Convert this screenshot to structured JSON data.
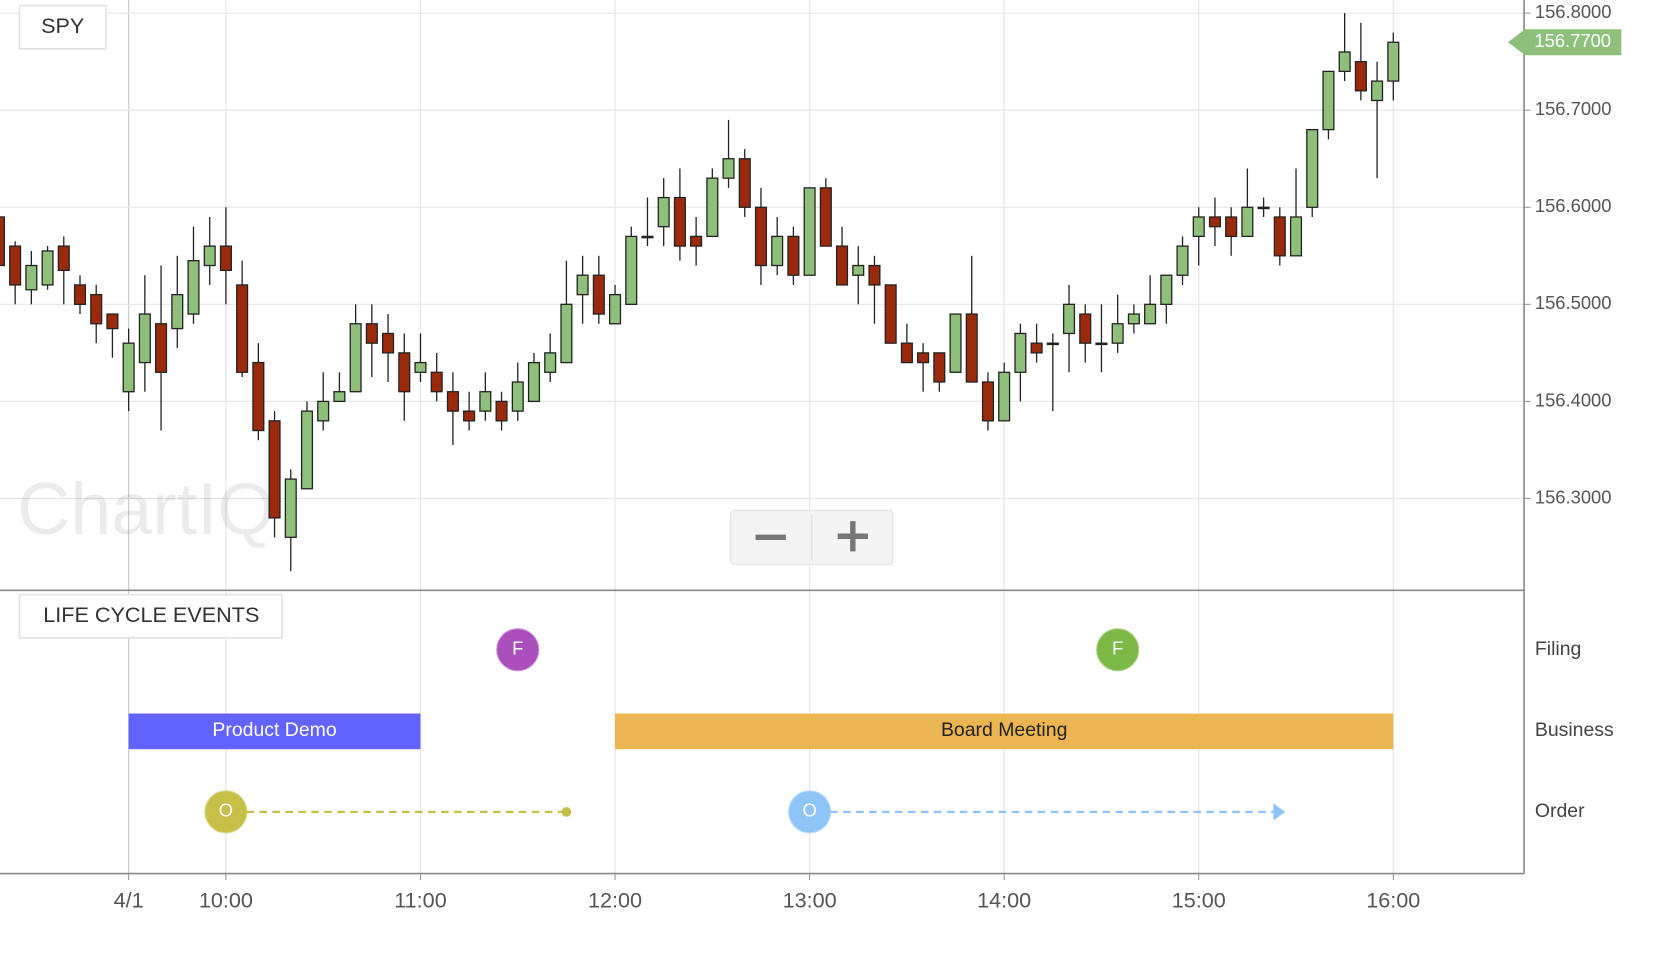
{
  "chart_data": [
    {
      "type": "candlestick",
      "title": "SPY",
      "watermark": "ChartIQ",
      "xlim": [
        530.33,
        1000.33
      ],
      "xticks": [
        {
          "value": 570,
          "label": "4/1"
        },
        {
          "value": 600,
          "label": "10:00"
        },
        {
          "value": 660,
          "label": "11:00"
        },
        {
          "value": 720,
          "label": "12:00"
        },
        {
          "value": 780,
          "label": "13:00"
        },
        {
          "value": 840,
          "label": "14:00"
        },
        {
          "value": 900,
          "label": "15:00"
        },
        {
          "value": 960,
          "label": "16:00"
        }
      ],
      "ylim": [
        156.2054,
        156.8134
      ],
      "yticks": [
        {
          "value": 156.3,
          "label": "156.3000"
        },
        {
          "value": 156.4,
          "label": "156.4000"
        },
        {
          "value": 156.5,
          "label": "156.5000"
        },
        {
          "value": 156.6,
          "label": "156.6000"
        },
        {
          "value": 156.7,
          "label": "156.7000"
        },
        {
          "value": 156.8,
          "label": "156.8000"
        }
      ],
      "grid": true,
      "up_color": "#8ec07c",
      "down_color": "#9b2a0d",
      "last_price": {
        "value": 156.77,
        "label": "156.7700",
        "color": "#8ec07c"
      },
      "x": [
        530,
        535,
        540,
        545,
        550,
        555,
        560,
        565,
        570,
        575,
        580,
        585,
        590,
        595,
        600,
        605,
        610,
        615,
        620,
        625,
        630,
        635,
        640,
        645,
        650,
        655,
        660,
        665,
        670,
        675,
        680,
        685,
        690,
        695,
        700,
        705,
        710,
        715,
        720,
        725,
        730,
        735,
        740,
        745,
        750,
        755,
        760,
        765,
        770,
        775,
        780,
        785,
        790,
        795,
        800,
        805,
        810,
        815,
        820,
        825,
        830,
        835,
        840,
        845,
        850,
        855,
        860,
        865,
        870,
        875,
        880,
        885,
        890,
        895,
        900,
        905,
        910,
        915,
        920,
        925,
        930,
        935,
        940,
        945,
        950,
        955,
        960
      ],
      "open": [
        156.59,
        156.56,
        156.515,
        156.52,
        156.56,
        156.52,
        156.51,
        156.49,
        156.41,
        156.44,
        156.48,
        156.475,
        156.49,
        156.54,
        156.56,
        156.52,
        156.44,
        156.38,
        156.26,
        156.31,
        156.38,
        156.4,
        156.41,
        156.48,
        156.47,
        156.45,
        156.43,
        156.43,
        156.41,
        156.39,
        156.39,
        156.4,
        156.39,
        156.4,
        156.43,
        156.44,
        156.51,
        156.53,
        156.48,
        156.5,
        156.57,
        156.58,
        156.61,
        156.57,
        156.57,
        156.63,
        156.65,
        156.6,
        156.54,
        156.57,
        156.53,
        156.62,
        156.56,
        156.53,
        156.54,
        156.52,
        156.46,
        156.45,
        156.45,
        156.43,
        156.49,
        156.42,
        156.38,
        156.43,
        156.46,
        156.46,
        156.47,
        156.49,
        156.46,
        156.46,
        156.48,
        156.48,
        156.5,
        156.53,
        156.57,
        156.59,
        156.59,
        156.57,
        156.6,
        156.59,
        156.55,
        156.6,
        156.68,
        156.74,
        156.75,
        156.71,
        156.73
      ],
      "high": [
        156.59,
        156.565,
        156.555,
        156.56,
        156.57,
        156.53,
        156.52,
        156.49,
        156.475,
        156.53,
        156.54,
        156.55,
        156.58,
        156.59,
        156.6,
        156.545,
        156.46,
        156.39,
        156.33,
        156.4,
        156.43,
        156.43,
        156.5,
        156.5,
        156.49,
        156.47,
        156.47,
        156.45,
        156.43,
        156.41,
        156.43,
        156.41,
        156.44,
        156.45,
        156.47,
        156.545,
        156.55,
        156.55,
        156.52,
        156.58,
        156.61,
        156.63,
        156.64,
        156.59,
        156.64,
        156.69,
        156.66,
        156.62,
        156.59,
        156.58,
        156.62,
        156.63,
        156.58,
        156.56,
        156.55,
        156.52,
        156.48,
        156.46,
        156.45,
        156.49,
        156.55,
        156.43,
        156.44,
        156.48,
        156.48,
        156.47,
        156.52,
        156.5,
        156.5,
        156.51,
        156.5,
        156.53,
        156.53,
        156.57,
        156.6,
        156.61,
        156.6,
        156.64,
        156.61,
        156.6,
        156.64,
        156.68,
        156.74,
        156.8,
        156.79,
        156.75,
        156.78
      ],
      "low": [
        156.54,
        156.5,
        156.5,
        156.515,
        156.5,
        156.49,
        156.46,
        156.445,
        156.39,
        156.41,
        156.37,
        156.455,
        156.48,
        156.52,
        156.5,
        156.425,
        156.36,
        156.26,
        156.225,
        156.31,
        156.37,
        156.4,
        156.41,
        156.425,
        156.42,
        156.38,
        156.42,
        156.4,
        156.355,
        156.37,
        156.38,
        156.37,
        156.38,
        156.4,
        156.42,
        156.44,
        156.48,
        156.48,
        156.48,
        156.5,
        156.56,
        156.56,
        156.545,
        156.54,
        156.57,
        156.62,
        156.59,
        156.52,
        156.53,
        156.52,
        156.53,
        156.56,
        156.52,
        156.5,
        156.48,
        156.46,
        156.44,
        156.41,
        156.41,
        156.43,
        156.42,
        156.37,
        156.38,
        156.4,
        156.44,
        156.39,
        156.43,
        156.44,
        156.43,
        156.45,
        156.47,
        156.48,
        156.48,
        156.52,
        156.54,
        156.56,
        156.55,
        156.57,
        156.59,
        156.54,
        156.55,
        156.59,
        156.67,
        156.73,
        156.71,
        156.63,
        156.71
      ],
      "close": [
        156.54,
        156.52,
        156.54,
        156.555,
        156.535,
        156.5,
        156.48,
        156.475,
        156.46,
        156.49,
        156.43,
        156.51,
        156.545,
        156.56,
        156.535,
        156.43,
        156.37,
        156.28,
        156.32,
        156.39,
        156.4,
        156.41,
        156.48,
        156.46,
        156.45,
        156.41,
        156.44,
        156.41,
        156.39,
        156.38,
        156.41,
        156.38,
        156.42,
        156.44,
        156.45,
        156.5,
        156.53,
        156.49,
        156.51,
        156.57,
        156.57,
        156.61,
        156.56,
        156.56,
        156.63,
        156.65,
        156.6,
        156.54,
        156.57,
        156.53,
        156.62,
        156.56,
        156.52,
        156.54,
        156.52,
        156.46,
        156.44,
        156.44,
        156.42,
        156.49,
        156.42,
        156.38,
        156.43,
        156.47,
        156.45,
        156.46,
        156.5,
        156.46,
        156.46,
        156.48,
        156.49,
        156.5,
        156.53,
        156.56,
        156.59,
        156.58,
        156.57,
        156.6,
        156.6,
        156.55,
        156.59,
        156.68,
        156.74,
        156.76,
        156.72,
        156.73,
        156.77
      ]
    },
    {
      "type": "timeline",
      "title": "LIFE CYCLE EVENTS",
      "lanes": [
        {
          "name": "Filing",
          "markers": [
            {
              "x": 690,
              "label": "F",
              "color": "#ab4fbd"
            },
            {
              "x": 875,
              "label": "F",
              "color": "#7cb947"
            }
          ]
        },
        {
          "name": "Business",
          "spans": [
            {
              "start": 570,
              "end": 660,
              "label": "Product Demo",
              "color": "#6262ff",
              "text_color": "#ffffff"
            },
            {
              "start": 720,
              "end": 960,
              "label": "Board Meeting",
              "color": "#ebb552",
              "text_color": "#222222"
            }
          ]
        },
        {
          "name": "Order",
          "orders": [
            {
              "start": 600,
              "end": 705,
              "label": "O",
              "color": "#c6c049",
              "end_style": "dot"
            },
            {
              "start": 780,
              "end": 925,
              "label": "O",
              "color": "#8ec4f8",
              "end_style": "arrow"
            }
          ]
        }
      ]
    }
  ]
}
